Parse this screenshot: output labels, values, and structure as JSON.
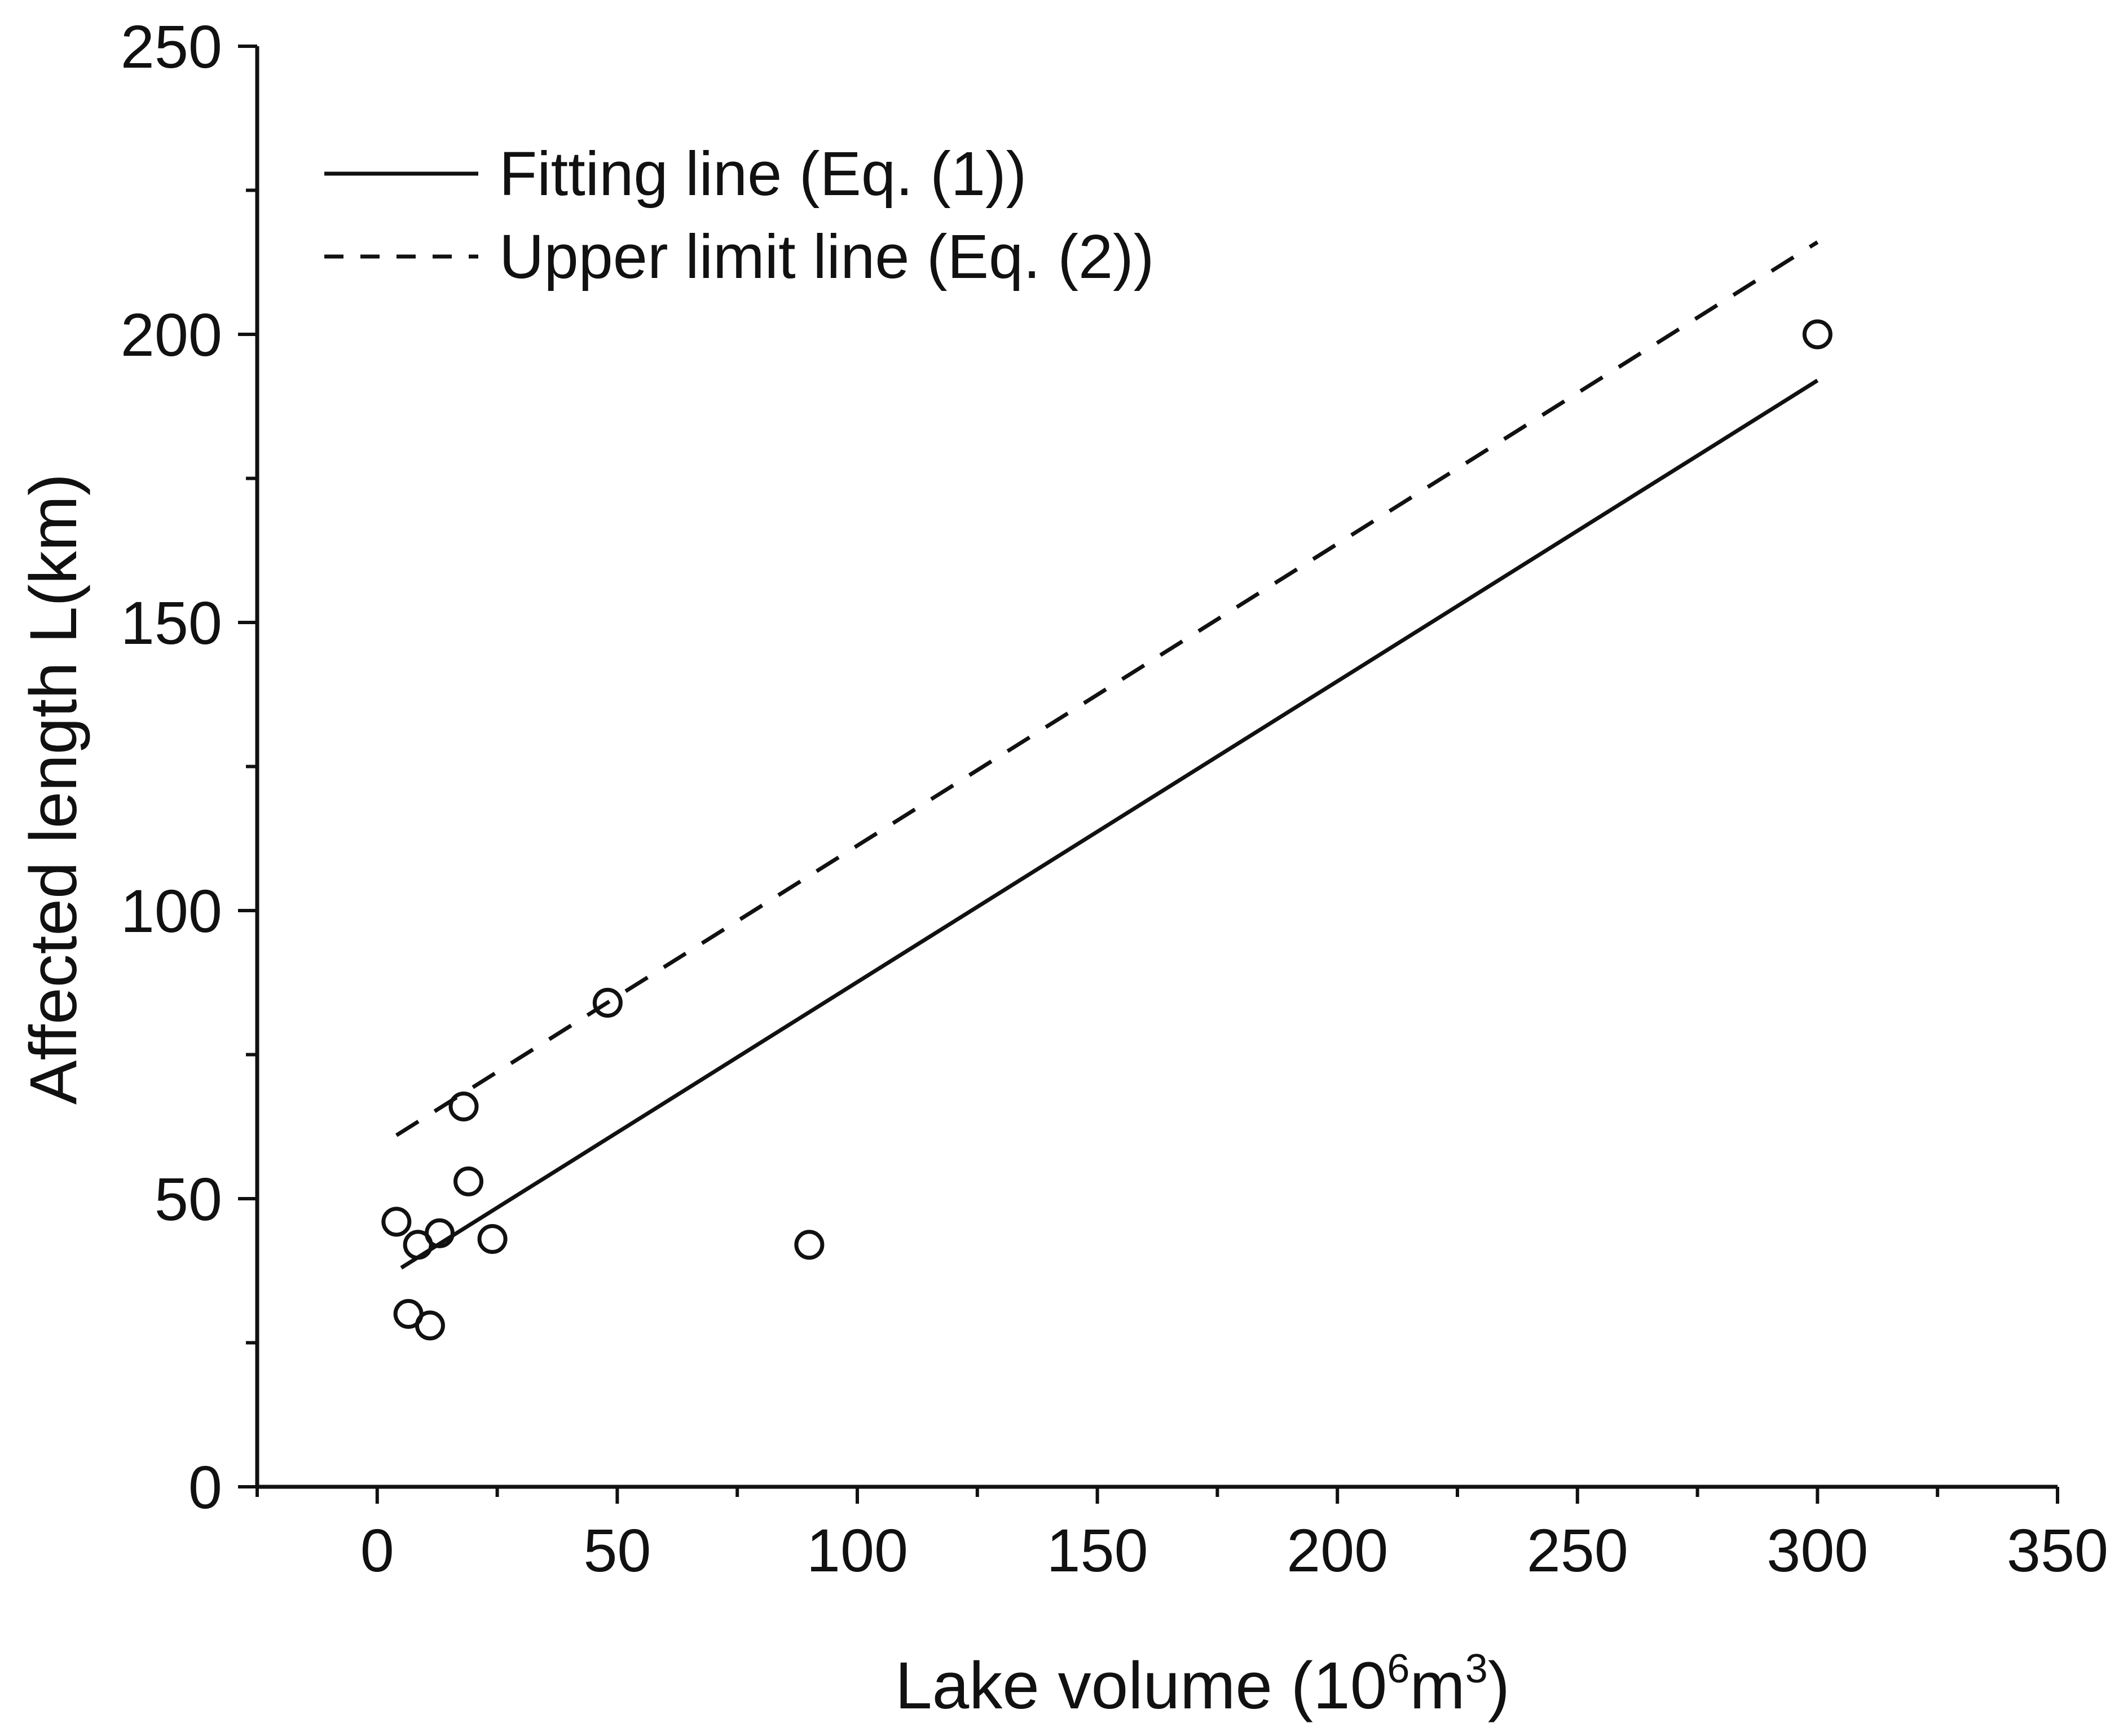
{
  "chart_data": {
    "type": "scatter",
    "title": "",
    "xlabel": {
      "prefix": "Lake volume (10",
      "sup1": "6",
      "mid": "m",
      "sup2": "3",
      "suffix": ")"
    },
    "ylabel": "Affected length L(km)",
    "xlim": [
      -25,
      350
    ],
    "ylim": [
      0,
      250
    ],
    "x_ticks": [
      0,
      50,
      100,
      150,
      200,
      250,
      300,
      350
    ],
    "x_tick_labels": [
      "0",
      "50",
      "100",
      "150",
      "200",
      "250",
      "300",
      "350"
    ],
    "x_minor_step": 25,
    "y_ticks": [
      0,
      50,
      100,
      150,
      200,
      250
    ],
    "y_tick_labels": [
      "0",
      "50",
      "100",
      "150",
      "200",
      "250"
    ],
    "y_minor_step": 25,
    "grid": false,
    "legend_position": "top-left",
    "series": [
      {
        "kind": "points",
        "marker": "open-circle",
        "points": [
          [
            4,
            46
          ],
          [
            6.5,
            30
          ],
          [
            8.5,
            42
          ],
          [
            11,
            28
          ],
          [
            13,
            44
          ],
          [
            18,
            66
          ],
          [
            19,
            53
          ],
          [
            24,
            43
          ],
          [
            48,
            84
          ],
          [
            90,
            42
          ],
          [
            300,
            200
          ]
        ]
      },
      {
        "name": "Fitting line (Eq. (1))",
        "kind": "line",
        "style": "solid",
        "points": [
          [
            5,
            38
          ],
          [
            300,
            192
          ]
        ]
      },
      {
        "name": "Upper limit line (Eq. (2))",
        "kind": "line",
        "style": "dashed",
        "points": [
          [
            4,
            61
          ],
          [
            300,
            216
          ]
        ]
      }
    ],
    "colors": {
      "ink": "#111111",
      "background": "#ffffff"
    }
  }
}
